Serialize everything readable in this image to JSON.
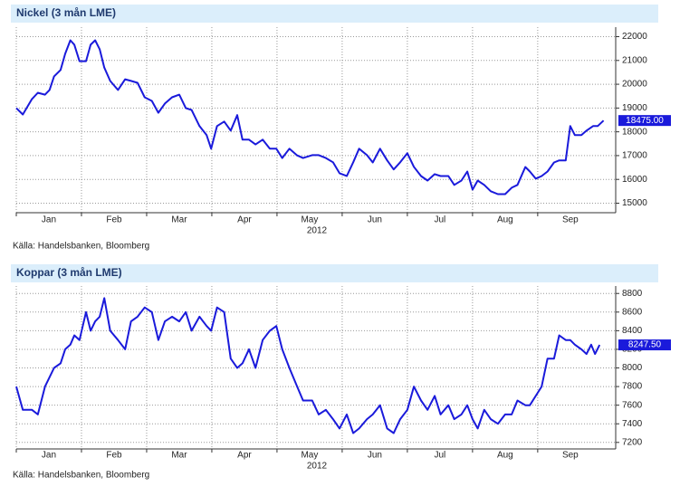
{
  "chart_data": [
    {
      "type": "line",
      "title": "Nickel (3 mån LME)",
      "source": "Källa: Handelsbanken, Bloomberg",
      "x_axis_label": "2012",
      "color": "#1a1adb",
      "x": [
        0,
        0.1,
        0.24,
        0.33,
        0.44,
        0.51,
        0.58,
        0.68,
        0.75,
        0.83,
        0.89,
        0.97,
        1.07,
        1.14,
        1.21,
        1.28,
        1.35,
        1.44,
        1.56,
        1.67,
        1.76,
        1.86,
        1.97,
        2.08,
        2.18,
        2.28,
        2.39,
        2.5,
        2.6,
        2.69,
        2.81,
        2.92,
        2.99,
        3.08,
        3.19,
        3.29,
        3.39,
        3.47,
        3.57,
        3.67,
        3.78,
        3.89,
        3.99,
        4.08,
        4.19,
        4.31,
        4.4,
        4.54,
        4.64,
        4.75,
        4.86,
        4.96,
        5.07,
        5.17,
        5.26,
        5.38,
        5.47,
        5.58,
        5.69,
        5.79,
        5.89,
        6,
        6.1,
        6.21,
        6.31,
        6.42,
        6.51,
        6.63,
        6.72,
        6.83,
        6.92,
        7,
        7.08,
        7.18,
        7.28,
        7.39,
        7.5,
        7.6,
        7.69,
        7.81,
        7.88,
        7.97,
        8.06,
        8.15,
        8.25,
        8.33,
        8.43,
        8.5,
        8.57,
        8.67,
        8.75,
        8.85,
        8.92,
        9.01
      ],
      "values": [
        19000,
        18730,
        19380,
        19640,
        19560,
        19760,
        20330,
        20600,
        21280,
        21850,
        21660,
        20970,
        20970,
        21660,
        21850,
        21470,
        20700,
        20140,
        19760,
        20210,
        20140,
        20060,
        19450,
        19300,
        18800,
        19190,
        19450,
        19560,
        19000,
        18920,
        18240,
        17860,
        17290,
        18240,
        18430,
        18050,
        18700,
        17670,
        17670,
        17470,
        17670,
        17290,
        17290,
        16900,
        17290,
        17010,
        16900,
        17020,
        17020,
        16900,
        16720,
        16260,
        16140,
        16720,
        17290,
        17020,
        16710,
        17290,
        16800,
        16420,
        16720,
        17100,
        16530,
        16140,
        15950,
        16220,
        16140,
        16140,
        15770,
        15950,
        16330,
        15570,
        15950,
        15770,
        15500,
        15380,
        15380,
        15650,
        15770,
        16520,
        16330,
        16030,
        16140,
        16330,
        16710,
        16800,
        16800,
        18240,
        17860,
        17860,
        18050,
        18240,
        18240,
        18475
      ],
      "last_value_label": "18475.00",
      "xlim": [
        0,
        9.03
      ],
      "xticks": [
        {
          "value": 0,
          "label": "Jan"
        },
        {
          "value": 1,
          "label": "Feb"
        },
        {
          "value": 2,
          "label": "Mar"
        },
        {
          "value": 3,
          "label": "Apr"
        },
        {
          "value": 4,
          "label": "May"
        },
        {
          "value": 5,
          "label": "Jun"
        },
        {
          "value": 6,
          "label": "Jul"
        },
        {
          "value": 7,
          "label": "Aug"
        },
        {
          "value": 8,
          "label": "Sep"
        }
      ],
      "ylim": [
        14600,
        22400
      ],
      "yticks": [
        15000,
        16000,
        17000,
        18000,
        19000,
        20000,
        21000,
        22000
      ],
      "grid": true
    },
    {
      "type": "line",
      "title": "Koppar (3 mån LME)",
      "source": "Källa: Handelsbanken, Bloomberg",
      "x_axis_label": "2012",
      "color": "#1a1adb",
      "x": [
        0,
        0.1,
        0.24,
        0.33,
        0.44,
        0.51,
        0.58,
        0.68,
        0.75,
        0.83,
        0.89,
        0.97,
        1.07,
        1.14,
        1.21,
        1.28,
        1.35,
        1.44,
        1.56,
        1.67,
        1.76,
        1.86,
        1.97,
        2.08,
        2.18,
        2.28,
        2.39,
        2.5,
        2.6,
        2.69,
        2.81,
        2.92,
        2.99,
        3.08,
        3.19,
        3.29,
        3.39,
        3.47,
        3.57,
        3.67,
        3.78,
        3.89,
        3.99,
        4.08,
        4.19,
        4.31,
        4.4,
        4.54,
        4.64,
        4.75,
        4.86,
        4.96,
        5.07,
        5.17,
        5.26,
        5.38,
        5.47,
        5.58,
        5.69,
        5.79,
        5.89,
        6,
        6.1,
        6.21,
        6.31,
        6.42,
        6.51,
        6.63,
        6.72,
        6.83,
        6.92,
        7,
        7.08,
        7.18,
        7.28,
        7.39,
        7.5,
        7.6,
        7.69,
        7.81,
        7.88,
        7.97,
        8.06,
        8.15,
        8.25,
        8.33,
        8.43,
        8.5,
        8.57,
        8.67,
        8.75,
        8.82,
        8.88,
        8.95
      ],
      "values": [
        7800,
        7550,
        7550,
        7500,
        7800,
        7900,
        8000,
        8050,
        8200,
        8250,
        8350,
        8300,
        8600,
        8400,
        8500,
        8550,
        8750,
        8400,
        8300,
        8200,
        8500,
        8550,
        8650,
        8600,
        8300,
        8500,
        8550,
        8500,
        8600,
        8400,
        8550,
        8450,
        8400,
        8650,
        8600,
        8100,
        8000,
        8050,
        8200,
        8000,
        8300,
        8400,
        8450,
        8200,
        8000,
        7800,
        7650,
        7650,
        7500,
        7550,
        7450,
        7350,
        7500,
        7300,
        7350,
        7450,
        7500,
        7600,
        7350,
        7300,
        7450,
        7550,
        7800,
        7650,
        7550,
        7700,
        7500,
        7600,
        7450,
        7500,
        7600,
        7450,
        7350,
        7550,
        7450,
        7400,
        7500,
        7500,
        7650,
        7600,
        7600,
        7700,
        7800,
        8100,
        8100,
        8350,
        8300,
        8300,
        8250,
        8200,
        8150,
        8250,
        8150,
        8247.5
      ],
      "last_value_label": "8247.50",
      "xlim": [
        0,
        9.03
      ],
      "xticks": [
        {
          "value": 0,
          "label": "Jan"
        },
        {
          "value": 1,
          "label": "Feb"
        },
        {
          "value": 2,
          "label": "Mar"
        },
        {
          "value": 3,
          "label": "Apr"
        },
        {
          "value": 4,
          "label": "May"
        },
        {
          "value": 5,
          "label": "Jun"
        },
        {
          "value": 6,
          "label": "Jul"
        },
        {
          "value": 7,
          "label": "Aug"
        },
        {
          "value": 8,
          "label": "Sep"
        }
      ],
      "ylim": [
        7130,
        8880
      ],
      "yticks": [
        7200,
        7400,
        7600,
        7800,
        8000,
        8200,
        8400,
        8600,
        8800
      ],
      "grid": true
    }
  ]
}
